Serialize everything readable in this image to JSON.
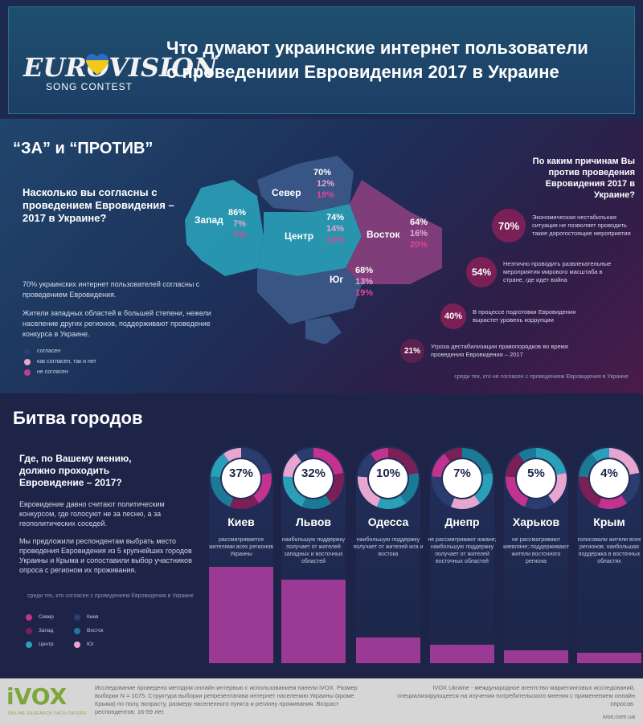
{
  "header": {
    "logo_text": "EUROVISION",
    "logo_sub": "SONG CONTEST",
    "title_line1": "Что думают украинские интернет пользователи",
    "title_line2": "о проведениии Евровидения 2017 в Украине"
  },
  "section1": {
    "heading": "“ЗА” и “ПРОТИВ”",
    "question": "Насколько вы согласны с проведением Евровидения – 2017 в Украине?",
    "note_1": "70% украинских интернет пользователей согласны с проведением Евровидения.",
    "note_2": "Жители западных областей в большей степени, нежели население других регионов, поддерживают проведение конкурса в Украине.",
    "legend": [
      {
        "label": "согласен",
        "color": "#2b3c6e"
      },
      {
        "label": "как согласен, так и нет",
        "color": "#e6a6d0"
      },
      {
        "label": "не согласен",
        "color": "#c43d8c"
      }
    ],
    "regions": [
      {
        "name": "Запад",
        "agree": "86%",
        "mixed": "7%",
        "disagree": "7%"
      },
      {
        "name": "Север",
        "agree": "70%",
        "mixed": "12%",
        "disagree": "18%"
      },
      {
        "name": "Центр",
        "agree": "74%",
        "mixed": "14%",
        "disagree": "12%"
      },
      {
        "name": "Восток",
        "agree": "64%",
        "mixed": "16%",
        "disagree": "20%"
      },
      {
        "name": "Юг",
        "agree": "68%",
        "mixed": "13%",
        "disagree": "19%"
      }
    ],
    "reasons_question": "По каким причинам Вы против проведения Евровидения 2017 в Украине?",
    "reasons": [
      {
        "pct": "70%",
        "text": "Экономическая нестабильная ситуация не позволяет проводить такие дорогостоящие мероприятия"
      },
      {
        "pct": "54%",
        "text": "Неэтично проводить развлекательные мероприятия мирового масштаба в стране, где идет война"
      },
      {
        "pct": "40%",
        "text": "В процессе подготовки Евровидения вырастет уровень коррупции"
      },
      {
        "pct": "21%",
        "text": "Угроза дестабилизации правопорядков во время проведения Евровидения – 2017"
      }
    ],
    "footnote": "среди тех, кто не согласен с проведением Евровидения в Украине"
  },
  "section2": {
    "heading": "Битва городов",
    "question": "Где, по Вашему мению, должно проходить Евровидение – 2017?",
    "para1": "Евровидение давно считают политическим конкурсом, где голосуют не за песню, а за геополитических соседей.",
    "para2": "Мы предложили респондентам выбрать место проведения Евровидения из 5 крупнейших городов Украины и Крыма и сопоставили выбор участников опроса с регионом их проживания.",
    "footnote": "среди тех, кто согласен с проведением Евровидения в Украине",
    "legend": [
      {
        "label": "Север",
        "color": "#c2328f"
      },
      {
        "label": "Киев",
        "color": "#2b3c6e"
      },
      {
        "label": "Запад",
        "color": "#7b2057"
      },
      {
        "label": "Восток",
        "color": "#1b7a96"
      },
      {
        "label": "Центр",
        "color": "#2aa0b8"
      },
      {
        "label": "Юг",
        "color": "#e6a6d0"
      }
    ],
    "cities": [
      {
        "name": "Киев",
        "pct": "37%",
        "value": 37,
        "desc": "рассматривается жителями всех регионов Украины"
      },
      {
        "name": "Львов",
        "pct": "32%",
        "value": 32,
        "desc": "наибольшую поддержку получает от жителей западных и восточных областей"
      },
      {
        "name": "Одесса",
        "pct": "10%",
        "value": 10,
        "desc": "наибольшую поддержку получает от жителей юга и востока"
      },
      {
        "name": "Днепр",
        "pct": "7%",
        "value": 7,
        "desc": "не рассматривают южане; наибольшую поддержку получает от жителей восточных областей"
      },
      {
        "name": "Харьков",
        "pct": "5%",
        "value": 5,
        "desc": "не рассматривают киевляне; поддерживают жители восточного региона"
      },
      {
        "name": "Крым",
        "pct": "4%",
        "value": 4,
        "desc": "голосовали жители всех регионов; наибольшая поддержка в восточных областях"
      }
    ]
  },
  "footer": {
    "brand": "iVOX",
    "brand_sub": "ONLINE RESEARCH FACILITATORS",
    "left_text": "Исследование проведено методом онлайн интервью с использованием панели iVOX. Размер выборки N = 1075. Структура выборки репрезентатива интернет населению Украины (кроме Крыма) по полу, возрасту, размеру населенного пункта и региону проживания. Возраст респондентов: 16-59 лет.",
    "right_text": "iVOX Ukraine - международное агентство маркетинговых исследований, специализирующееся на изучении потребительского мнения с применением онлайн опросов.",
    "url": "ivox.com.ua"
  }
}
